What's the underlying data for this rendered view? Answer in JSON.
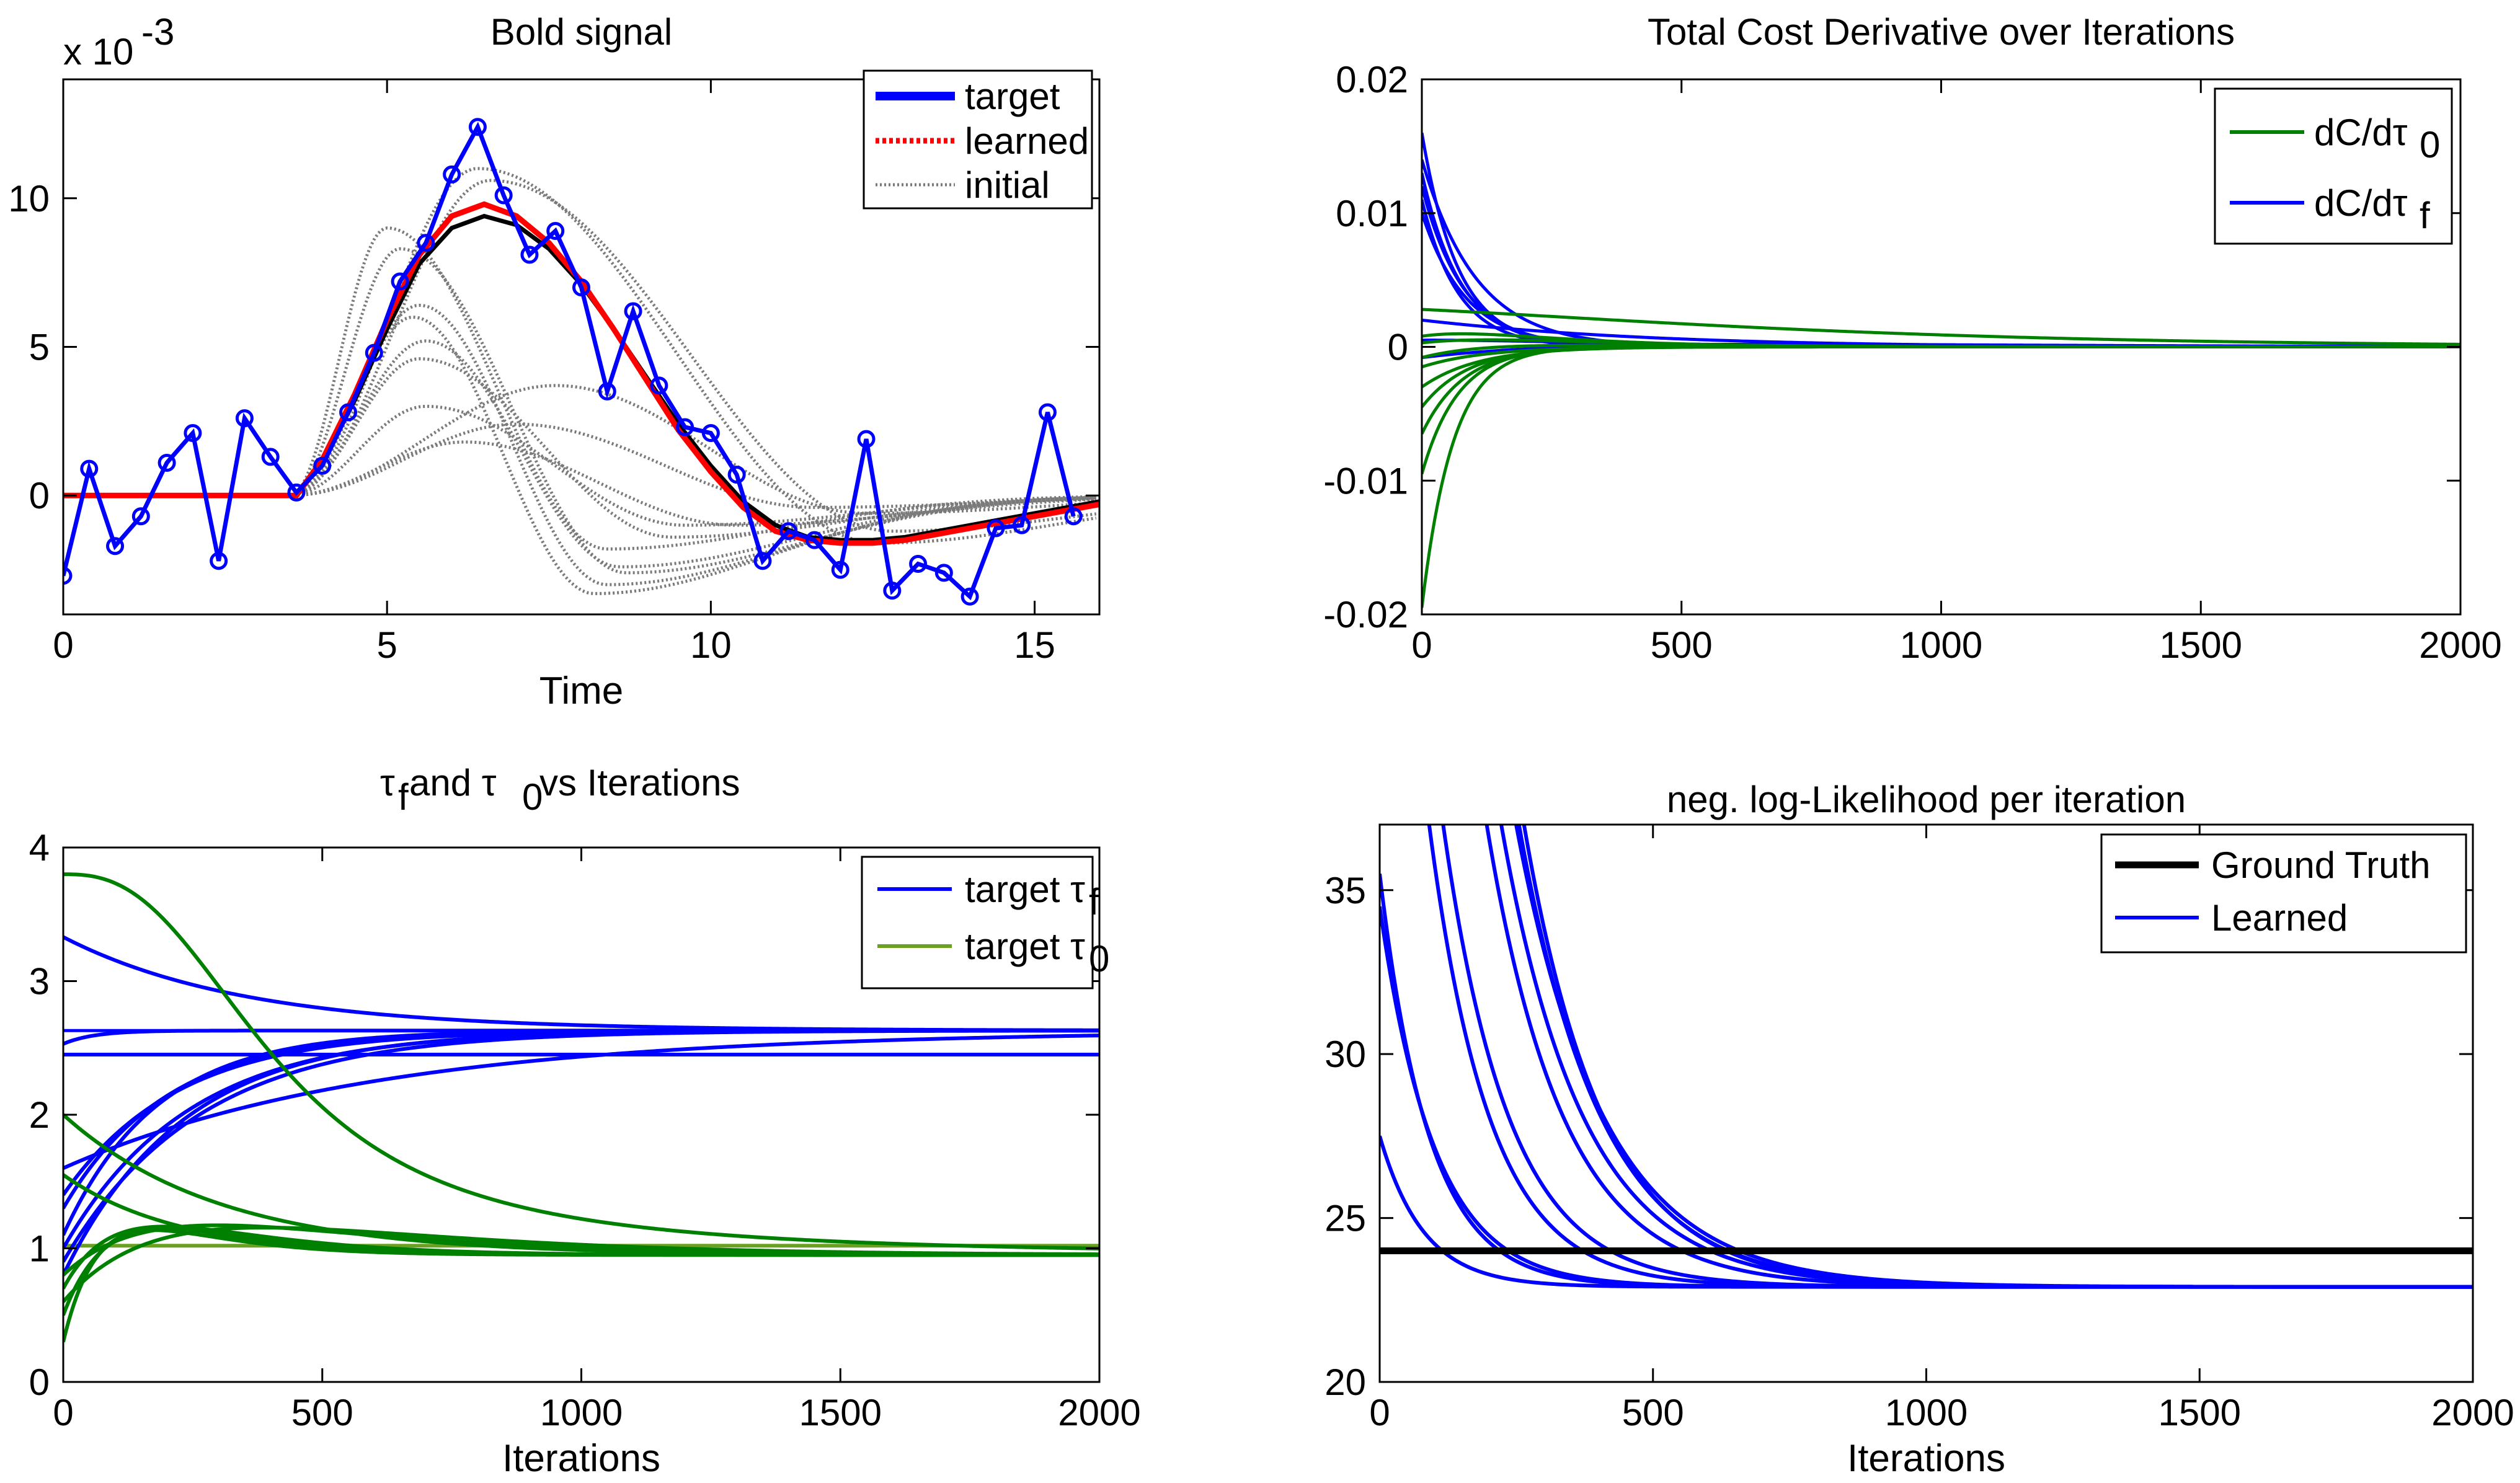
{
  "chart_data": [
    {
      "type": "line",
      "title": "Bold signal",
      "xlabel": "Time",
      "ylabel": "",
      "y_exponent_label": "x 10",
      "y_exponent": "-3",
      "xlim": [
        0,
        16
      ],
      "ylim": [
        -4,
        14
      ],
      "xticks": [
        0,
        5,
        10,
        15
      ],
      "yticks": [
        0,
        5,
        10
      ],
      "legend_position": "top-right",
      "legend": [
        "target",
        "learned",
        "initial"
      ],
      "series": [
        {
          "name": "target",
          "color": "#0000FF",
          "marker": "circle",
          "x": [
            0,
            0.4,
            0.8,
            1.2,
            1.6,
            2.0,
            2.4,
            2.8,
            3.2,
            3.6,
            4.0,
            4.4,
            4.8,
            5.2,
            5.6,
            6.0,
            6.4,
            6.8,
            7.2,
            7.6,
            8.0,
            8.4,
            8.8,
            9.2,
            9.6,
            10.0,
            10.4,
            10.8,
            11.2,
            11.6,
            12.0,
            12.4,
            12.8,
            13.2,
            13.6,
            14.0,
            14.4,
            14.8,
            15.2,
            15.6
          ],
          "y": [
            -2.7,
            0.9,
            -1.7,
            -0.7,
            1.1,
            2.1,
            -2.2,
            2.6,
            1.3,
            0.1,
            1.0,
            2.8,
            4.8,
            7.2,
            8.5,
            10.8,
            12.4,
            10.1,
            8.1,
            8.9,
            7.0,
            3.5,
            6.2,
            3.7,
            2.3,
            2.1,
            0.7,
            -2.2,
            -1.2,
            -1.5,
            -2.5,
            1.9,
            -3.2,
            -2.3,
            -2.6,
            -3.4,
            -1.1,
            -1.0,
            2.8,
            -0.7
          ]
        },
        {
          "name": "learned",
          "color": "#FF0000",
          "style": "dotted",
          "x": [
            0,
            3.6,
            4.0,
            4.5,
            5.0,
            5.5,
            6.0,
            6.5,
            7.0,
            7.5,
            8.0,
            8.5,
            9.0,
            9.5,
            10.0,
            10.5,
            11.0,
            11.5,
            12.0,
            12.5,
            13.0,
            13.5,
            14.0,
            14.5,
            15.0,
            15.5,
            16.0
          ],
          "y": [
            0,
            0,
            1.2,
            3.4,
            5.9,
            8.1,
            9.4,
            9.8,
            9.4,
            8.5,
            7.2,
            5.6,
            3.9,
            2.2,
            0.8,
            -0.4,
            -1.2,
            -1.5,
            -1.6,
            -1.6,
            -1.5,
            -1.3,
            -1.1,
            -0.9,
            -0.7,
            -0.5,
            -0.3
          ]
        },
        {
          "name": "",
          "color": "#000000",
          "x": [
            0,
            3.6,
            4.0,
            4.5,
            5.0,
            5.5,
            6.0,
            6.5,
            7.0,
            7.5,
            8.0,
            8.5,
            9.0,
            9.5,
            10.0,
            10.5,
            11.0,
            11.5,
            12.0,
            12.5,
            13.0,
            13.5,
            14.0,
            14.5,
            15.0,
            15.5,
            16.0
          ],
          "y": [
            0,
            0,
            1.1,
            3.2,
            5.6,
            7.8,
            9.0,
            9.4,
            9.1,
            8.3,
            7.1,
            5.6,
            4.0,
            2.4,
            1.0,
            -0.2,
            -1.0,
            -1.4,
            -1.5,
            -1.5,
            -1.4,
            -1.2,
            -1.0,
            -0.8,
            -0.6,
            -0.4,
            -0.2
          ]
        }
      ],
      "initial_curves": [
        {
          "start": 3.5,
          "peak_t": 5.0,
          "peak": 9.0,
          "trough_t": 8.4,
          "trough": -1.8
        },
        {
          "start": 3.5,
          "peak_t": 5.2,
          "peak": 8.3,
          "trough_t": 8.7,
          "trough": -2.6
        },
        {
          "start": 3.5,
          "peak_t": 5.5,
          "peak": 6.4,
          "trough_t": 8.4,
          "trough": -3.0
        },
        {
          "start": 3.5,
          "peak_t": 5.4,
          "peak": 6.0,
          "trough_t": 8.2,
          "trough": -3.3
        },
        {
          "start": 3.5,
          "peak_t": 5.6,
          "peak": 5.2,
          "trough_t": 8.6,
          "trough": -2.4
        },
        {
          "start": 3.5,
          "peak_t": 5.5,
          "peak": 4.6,
          "trough_t": 9.4,
          "trough": -1.4
        },
        {
          "start": 3.5,
          "peak_t": 5.6,
          "peak": 3.0,
          "trough_t": 9.6,
          "trough": -1.0
        },
        {
          "start": 3.5,
          "peak_t": 6.4,
          "peak": 11.0,
          "trough_t": 12.6,
          "trough": -1.6
        },
        {
          "start": 3.5,
          "peak_t": 6.6,
          "peak": 10.6,
          "trough_t": 12.8,
          "trough": -1.2
        },
        {
          "start": 3.5,
          "peak_t": 7.6,
          "peak": 3.7,
          "trough_t": 12.4,
          "trough": -0.6
        },
        {
          "start": 3.5,
          "peak_t": 7.0,
          "peak": 2.4,
          "trough_t": 11.6,
          "trough": -0.4
        },
        {
          "start": 3.5,
          "peak_t": 6.2,
          "peak": 1.8,
          "trough_t": 10.4,
          "trough": -1.0
        }
      ]
    },
    {
      "type": "line",
      "title": "Total Cost Derivative over Iterations",
      "xlabel": "",
      "ylabel": "",
      "xlim": [
        0,
        2000
      ],
      "ylim": [
        -0.02,
        0.02
      ],
      "xticks": [
        0,
        500,
        1000,
        1500,
        2000
      ],
      "yticks": [
        -0.02,
        -0.01,
        0,
        0.01,
        0.02
      ],
      "yticklabels": [
        "-0.02",
        "-0.01",
        "0",
        "0.01",
        "0.02"
      ],
      "legend_position": "top-right",
      "legend": [
        "dC/dτ",
        "dC/dτ"
      ],
      "legend_subscripts": [
        "0",
        "f"
      ],
      "series": [
        {
          "name": "dC/dτ0",
          "color": "#008000",
          "curves": [
            {
              "y0": -0.0195,
              "tau": 60,
              "bump": 0
            },
            {
              "y0": -0.0095,
              "tau": 70,
              "bump": 0
            },
            {
              "y0": -0.0065,
              "tau": 80,
              "bump": 0
            },
            {
              "y0": -0.0045,
              "tau": 90,
              "bump": 0
            },
            {
              "y0": -0.003,
              "tau": 110,
              "bump": 0
            },
            {
              "y0": -0.0015,
              "tau": 120,
              "bump": 0
            },
            {
              "y0": 0.0028,
              "tau": 500,
              "bump": 0.0014
            },
            {
              "y0": 0.0008,
              "tau": 150,
              "bump": 0.0012
            },
            {
              "y0": 0.0003,
              "tau": 180,
              "bump": 0.0008
            },
            {
              "y0": -0.0008,
              "tau": 160,
              "bump": 0.0006
            }
          ]
        },
        {
          "name": "dC/dτf",
          "color": "#0000FF",
          "curves": [
            {
              "y0": 0.016,
              "tau": 70,
              "bump": 0
            },
            {
              "y0": 0.014,
              "tau": 90,
              "bump": 0.0015
            },
            {
              "y0": 0.013,
              "tau": 75,
              "bump": 0
            },
            {
              "y0": 0.012,
              "tau": 80,
              "bump": 0
            },
            {
              "y0": 0.011,
              "tau": 70,
              "bump": 0
            },
            {
              "y0": 0.01,
              "tau": 85,
              "bump": 0
            },
            {
              "y0": 0.002,
              "tau": 300,
              "bump": 0.0005
            },
            {
              "y0": -0.0008,
              "tau": 400,
              "bump": 0.0008
            },
            {
              "y0": 0.0005,
              "tau": 250,
              "bump": 0.0004
            }
          ]
        }
      ]
    },
    {
      "type": "line",
      "title": "τ and τ  vs Iterations",
      "title_parts": [
        "τ",
        "f",
        " and τ",
        "0",
        "  vs Iterations"
      ],
      "xlabel": "Iterations",
      "ylabel": "",
      "xlim": [
        0,
        2000
      ],
      "ylim": [
        0,
        4
      ],
      "xticks": [
        0,
        500,
        1000,
        1500,
        2000
      ],
      "yticks": [
        0,
        1,
        2,
        3,
        4
      ],
      "legend_position": "top-right",
      "legend": [
        "target τ",
        "target τ"
      ],
      "legend_subscripts": [
        "f",
        "0"
      ],
      "target_tau_f": [
        2.63,
        2.45
      ],
      "target_tau_0": [
        1.02
      ],
      "series": [
        {
          "name": "target τf",
          "color": "#0000FF",
          "curves": [
            {
              "y0": 3.33,
              "yend": 2.63,
              "tau": 350
            },
            {
              "y0": 2.53,
              "yend": 2.63,
              "tau": 60
            },
            {
              "y0": 2.45,
              "yend": 2.45,
              "tau": 100
            },
            {
              "y0": 1.4,
              "yend": 2.63,
              "tau": 220
            },
            {
              "y0": 1.3,
              "yend": 2.63,
              "tau": 200
            },
            {
              "y0": 1.1,
              "yend": 2.63,
              "tau": 180
            },
            {
              "y0": 1.0,
              "yend": 2.63,
              "tau": 240
            },
            {
              "y0": 0.9,
              "yend": 2.63,
              "tau": 260
            },
            {
              "y0": 0.8,
              "yend": 2.63,
              "tau": 230
            },
            {
              "y0": 1.6,
              "yend": 2.63,
              "tau": 600
            }
          ]
        },
        {
          "name": "target τ0",
          "color": "#008000",
          "curves": [
            {
              "y0": 3.8,
              "yend": 0.95,
              "tau": 420
            },
            {
              "y0": 2.0,
              "yend": 0.95,
              "tau": 300
            },
            {
              "y0": 1.55,
              "yend": 0.95,
              "tau": 220
            },
            {
              "y0": 0.3,
              "yend": 0.95,
              "tau": 120
            },
            {
              "y0": 0.5,
              "yend": 0.95,
              "tau": 150
            },
            {
              "y0": 0.7,
              "yend": 0.95,
              "tau": 160
            },
            {
              "y0": 0.6,
              "yend": 0.95,
              "tau": 300
            },
            {
              "y0": 0.8,
              "yend": 0.95,
              "tau": 260
            }
          ]
        }
      ]
    },
    {
      "type": "line",
      "title": "neg. log-Likelihood per iteration",
      "xlabel": "Iterations",
      "ylabel": "",
      "xlim": [
        0,
        2000
      ],
      "ylim": [
        20,
        37
      ],
      "xticks": [
        0,
        500,
        1000,
        1500,
        2000
      ],
      "yticks": [
        20,
        25,
        30,
        35
      ],
      "legend_position": "top-right",
      "legend": [
        "Ground Truth",
        "Learned"
      ],
      "series": [
        {
          "name": "Ground Truth",
          "color": "#000000",
          "x": [
            0,
            2000
          ],
          "y": [
            24.0,
            24.0
          ]
        },
        {
          "name": "Learned",
          "color": "#0000FF",
          "floor": 22.9,
          "curves": [
            {
              "y0": 35.5,
              "tau": 90
            },
            {
              "y0": 34.5,
              "tau": 100
            },
            {
              "y0": 27.5,
              "tau": 80
            },
            {
              "y0": 60.0,
              "tau": 120
            },
            {
              "y0": 55.0,
              "tau": 110
            },
            {
              "y0": 80.0,
              "tau": 140
            },
            {
              "y0": 85.0,
              "tau": 150
            },
            {
              "y0": 90.0,
              "tau": 160
            },
            {
              "y0": 100.0,
              "tau": 150
            },
            {
              "y0": 110.0,
              "tau": 145
            }
          ]
        }
      ]
    }
  ]
}
